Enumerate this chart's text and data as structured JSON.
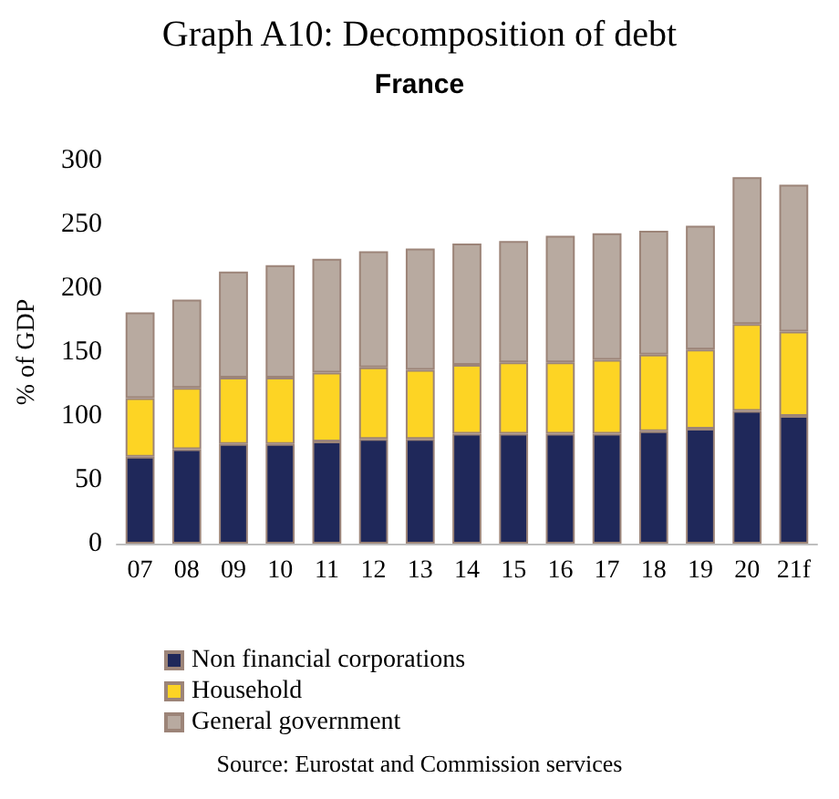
{
  "chart_data": {
    "type": "bar",
    "title": "Graph A10: Decomposition of debt",
    "subtitle": "France",
    "ylabel": "% of GDP",
    "categories": [
      "07",
      "08",
      "09",
      "10",
      "11",
      "12",
      "13",
      "14",
      "15",
      "16",
      "17",
      "18",
      "19",
      "20",
      "21f"
    ],
    "series": [
      {
        "name": "Non financial corporations",
        "color": "#1f285a",
        "values": [
          68,
          74,
          78,
          78,
          80,
          82,
          82,
          86,
          86,
          86,
          86,
          88,
          90,
          104,
          100
        ]
      },
      {
        "name": "Household",
        "color": "#fdd424",
        "values": [
          46,
          48,
          52,
          52,
          54,
          56,
          54,
          54,
          56,
          56,
          58,
          60,
          62,
          68,
          66
        ]
      },
      {
        "name": "General government",
        "color": "#b8aaa0",
        "values": [
          67,
          69,
          83,
          88,
          89,
          91,
          95,
          95,
          95,
          99,
          99,
          97,
          97,
          115,
          115
        ]
      }
    ],
    "stacked": true,
    "ylim": [
      0,
      300
    ],
    "yticks": [
      0,
      50,
      100,
      150,
      200,
      250,
      300
    ],
    "grid": false,
    "legend": "bottom left",
    "annotations": [
      "Source: Eurostat and Commission services"
    ]
  }
}
